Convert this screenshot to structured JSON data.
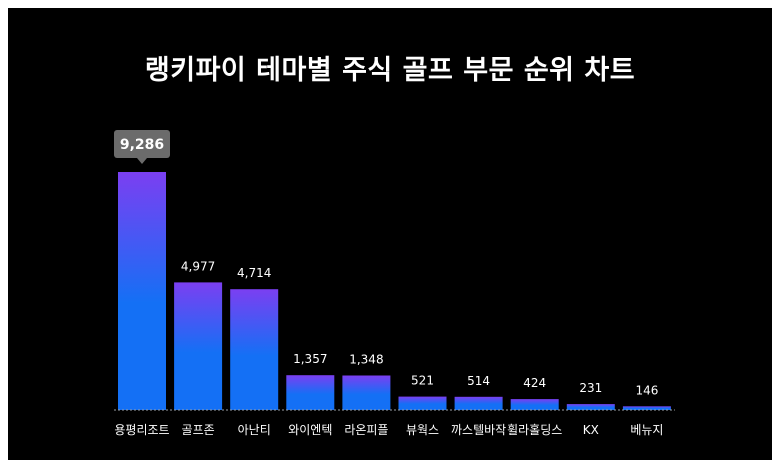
{
  "colors": {
    "background": "#000000",
    "bar_top": "#7b3ff2",
    "bar_bottom": "#1470f5",
    "top_value_badge": "#6b6b6b",
    "baseline": "#9aa0a6"
  },
  "chart_data": {
    "type": "bar",
    "title": "랭키파이 테마별 주식 골프 부문 순위 차트",
    "categories": [
      "용평리조트",
      "골프존",
      "아난티",
      "와이엔텍",
      "라온피플",
      "뷰웍스",
      "까스텔바작",
      "휠라홀딩스",
      "KX",
      "베뉴지"
    ],
    "values": [
      9286,
      4977,
      4714,
      1357,
      1348,
      521,
      514,
      424,
      231,
      146
    ],
    "value_labels": [
      "9,286",
      "4,977",
      "4,714",
      "1,357",
      "1,348",
      "521",
      "514",
      "424",
      "231",
      "146"
    ],
    "xlabel": "",
    "ylabel": "",
    "ylim": [
      0,
      9286
    ],
    "grid": false,
    "legend": "none",
    "highlighted_index": 0
  }
}
